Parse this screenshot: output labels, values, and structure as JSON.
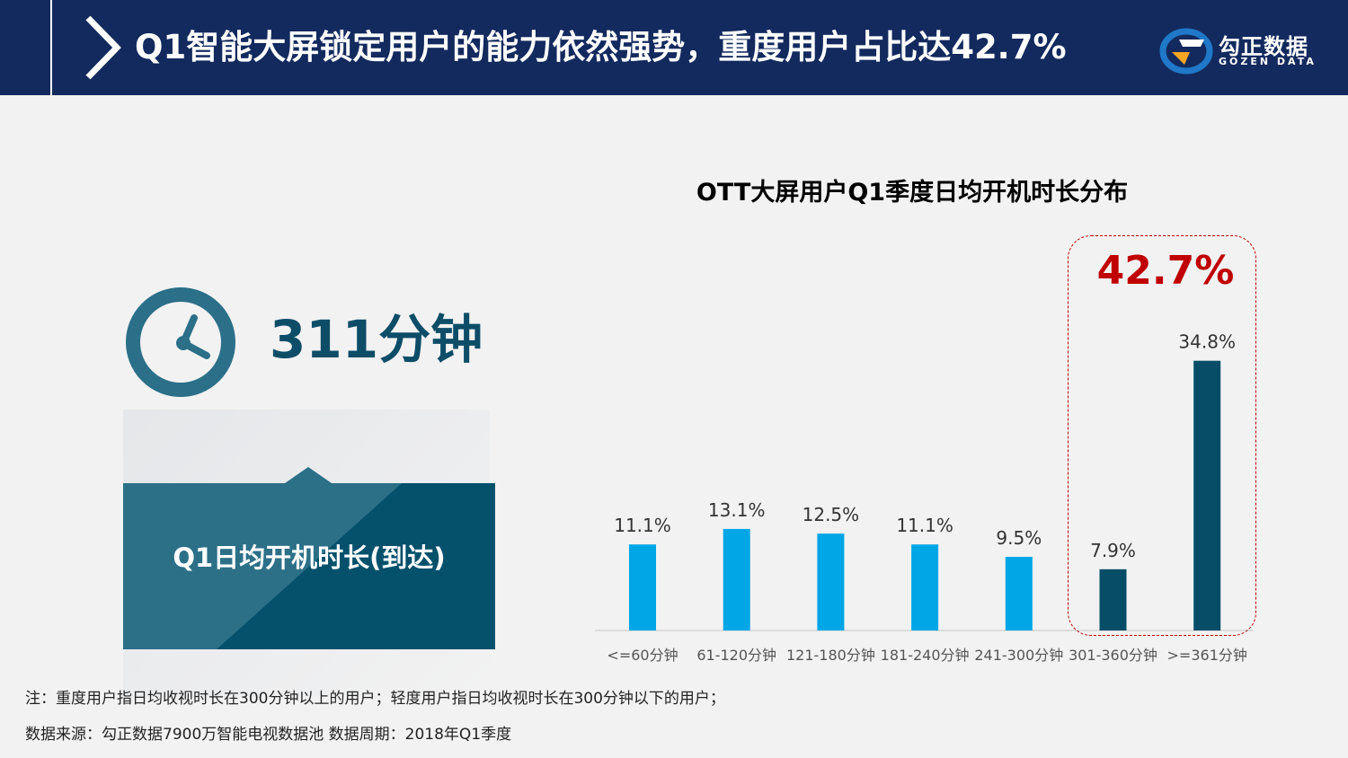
{
  "header": {
    "title": "Q1智能大屏锁定用户的能力依然强势，重度用户占比达42.7%",
    "logo_cn": "勾正数据",
    "logo_en": "GOZEN DATA"
  },
  "left_panel": {
    "value": "311分钟",
    "label": "Q1日均开机时长(到达)"
  },
  "highlight": {
    "value": "42.7%"
  },
  "chart_data": {
    "type": "bar",
    "title": "OTT大屏用户Q1季度日均开机时长分布",
    "categories": [
      "<=60分钟",
      "61-120分钟",
      "121-180分钟",
      "181-240分钟",
      "241-300分钟",
      "301-360分钟",
      ">=361分钟"
    ],
    "values": [
      11.1,
      13.1,
      12.5,
      11.1,
      9.5,
      7.9,
      34.8
    ],
    "value_labels": [
      "11.1%",
      "13.1%",
      "12.5%",
      "11.1%",
      "9.5%",
      "7.9%",
      "34.8%"
    ],
    "unit": "%",
    "ylim": [
      0,
      35
    ],
    "grid": false,
    "colors": {
      "light": "#00a6e6",
      "heavy": "#074d68"
    },
    "heavy_categories": [
      "301-360分钟",
      ">=361分钟"
    ]
  },
  "footer": {
    "note": "注：重度用户指日均收视时长在300分钟以上的用户；轻度用户指日均收视时长在300分钟以下的用户；",
    "source": "数据来源：勾正数据7900万智能电视数据池  数据周期：2018年Q1季度"
  },
  "colors": {
    "header_bg": "#132a5e",
    "accent_red": "#c00000",
    "teal_dark": "#0d4d68",
    "teal_light": "#2f6f88"
  }
}
